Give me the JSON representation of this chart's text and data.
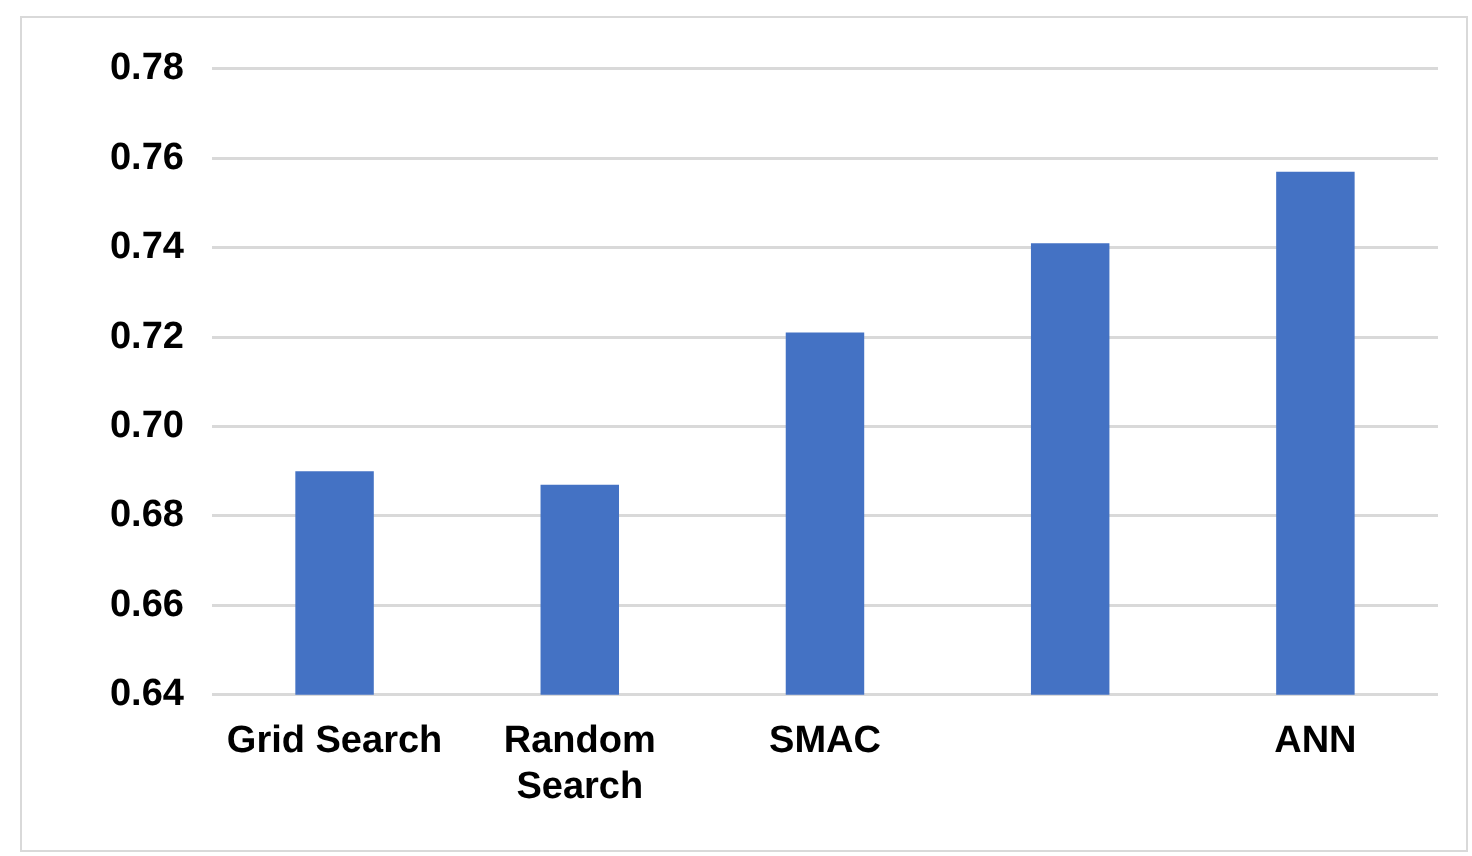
{
  "chart_data": {
    "type": "bar",
    "categories": [
      "Grid Search",
      "Random Search",
      "SMAC",
      null,
      "ANN"
    ],
    "values": [
      0.69,
      0.687,
      0.721,
      0.741,
      0.757
    ],
    "color": "#4472c4",
    "ylim": [
      0.64,
      0.78
    ],
    "yticks": [
      0.64,
      0.66,
      0.68,
      {
        "value": 0.7,
        "label": "0.70"
      },
      0.72,
      0.74,
      0.76,
      0.78
    ],
    "grid": "y",
    "legend": false
  }
}
